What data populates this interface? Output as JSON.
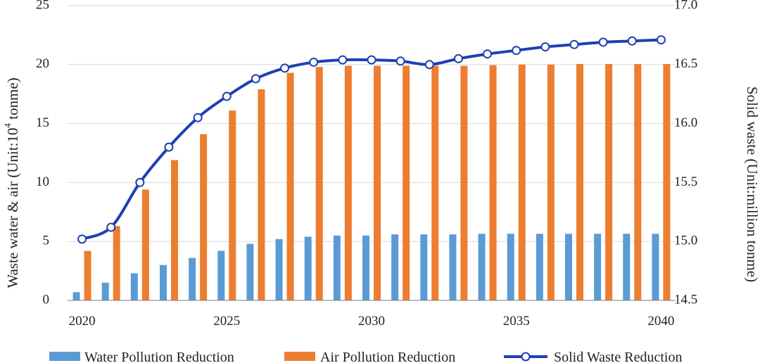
{
  "chart_data": {
    "type": "bar",
    "title": "",
    "categories": [
      2020,
      2021,
      2022,
      2023,
      2024,
      2025,
      2026,
      2027,
      2028,
      2029,
      2030,
      2031,
      2032,
      2033,
      2034,
      2035,
      2036,
      2037,
      2038,
      2039,
      2040
    ],
    "x_tick_labels": [
      "2020",
      "2025",
      "2030",
      "2035",
      "2040"
    ],
    "series": [
      {
        "name": "Water Pollution Reduction",
        "kind": "bar",
        "axis": "left",
        "color": "#5b9bd5",
        "values": [
          0.7,
          1.5,
          2.3,
          3.0,
          3.6,
          4.2,
          4.8,
          5.2,
          5.4,
          5.5,
          5.5,
          5.6,
          5.6,
          5.6,
          5.65,
          5.65,
          5.65,
          5.65,
          5.65,
          5.65,
          5.65
        ]
      },
      {
        "name": "Air Pollution Reduction",
        "kind": "bar",
        "axis": "left",
        "color": "#ed7d31",
        "values": [
          4.2,
          6.3,
          9.4,
          11.9,
          14.1,
          16.1,
          17.9,
          19.3,
          19.8,
          19.9,
          19.9,
          19.9,
          19.9,
          19.9,
          19.95,
          20.0,
          20.0,
          20.05,
          20.05,
          20.05,
          20.05
        ]
      },
      {
        "name": "Solid Waste Reduction",
        "kind": "line",
        "axis": "right",
        "color": "#1f3fb5",
        "values": [
          15.02,
          15.12,
          15.5,
          15.8,
          16.05,
          16.23,
          16.38,
          16.47,
          16.52,
          16.54,
          16.54,
          16.53,
          16.5,
          16.55,
          16.59,
          16.62,
          16.65,
          16.67,
          16.69,
          16.7,
          16.71
        ]
      }
    ],
    "y_left": {
      "label_prefix": "Waste water & air (Unit:10",
      "label_sup": "4",
      "label_suffix": " tonme)",
      "min": 0,
      "max": 25,
      "ticks": [
        0,
        5,
        10,
        15,
        20,
        25
      ],
      "tick_labels": [
        "0",
        "5",
        "10",
        "15",
        "20",
        "25"
      ]
    },
    "y_right": {
      "label": "Solid waste (Unit:million tonme)",
      "min": 14.5,
      "max": 17.0,
      "ticks": [
        14.5,
        15.0,
        15.5,
        16.0,
        16.5,
        17.0
      ],
      "tick_labels": [
        "14.5",
        "15.0",
        "15.5",
        "16.0",
        "16.5",
        "17.0"
      ]
    },
    "grid": true,
    "legend_position": "bottom",
    "colors": {
      "grid": "#d9d9d9",
      "marker_fill": "#ffffff"
    }
  }
}
